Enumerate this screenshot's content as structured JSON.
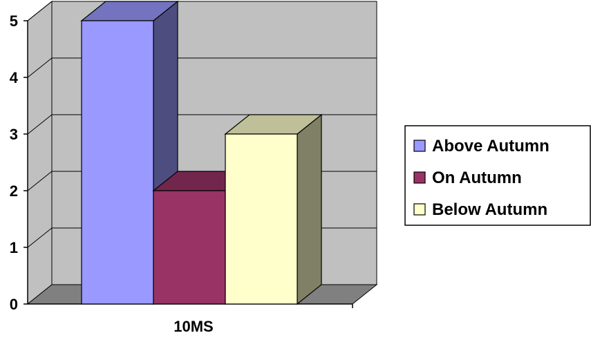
{
  "chart_data": {
    "type": "bar",
    "categories": [
      "10MS"
    ],
    "series": [
      {
        "name": "Above Autumn",
        "values": [
          5
        ],
        "color": "#9999FF"
      },
      {
        "name": "On Autumn",
        "values": [
          2
        ],
        "color": "#993366"
      },
      {
        "name": "Below Autumn",
        "values": [
          3
        ],
        "color": "#FFFFCC"
      }
    ],
    "title": "",
    "xlabel": "",
    "ylabel": "",
    "ylim": [
      0,
      5
    ],
    "yticks": [
      "0",
      "1",
      "2",
      "3",
      "4",
      "5"
    ],
    "grid": true,
    "style": "3d",
    "legend_position": "right",
    "colors": {
      "wall": "#C0C0C0",
      "floor": "#808080",
      "background": "#FFFFFF"
    }
  }
}
